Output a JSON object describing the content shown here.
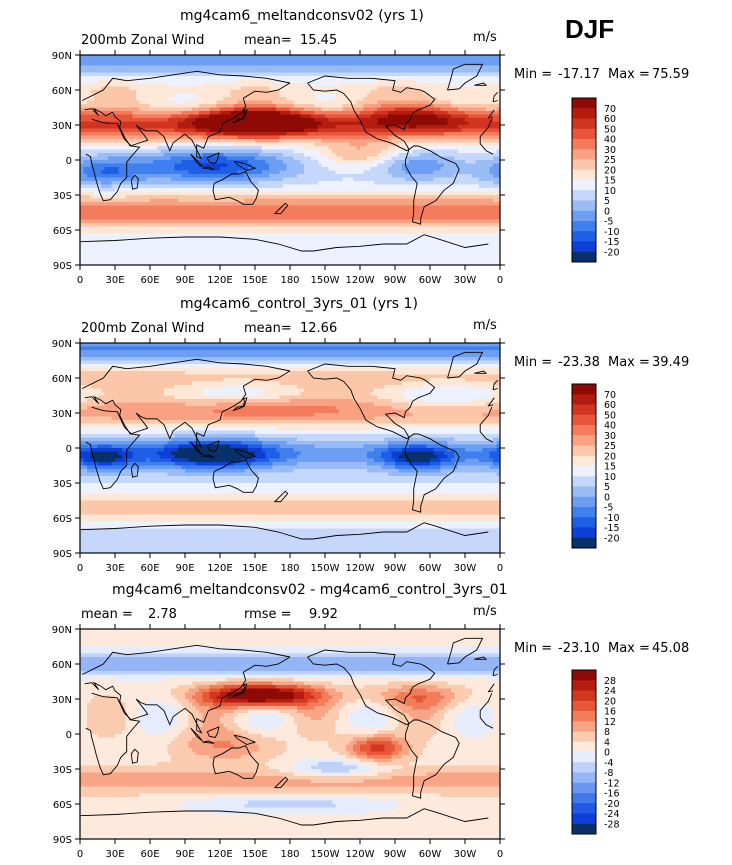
{
  "season": "DJF",
  "colors": {
    "frame": "#000000",
    "coast": "#000000",
    "mean_palette": [
      "#08306b",
      "#0d3fd6",
      "#1f5fe8",
      "#3f7fee",
      "#6c9ef3",
      "#99bbf6",
      "#c5d8fb",
      "#eef1ff",
      "#fde7d7",
      "#fcc6a8",
      "#f9a283",
      "#f47b5c",
      "#e9553a",
      "#d13520",
      "#b51c10",
      "#8e0a05"
    ],
    "diff_palette": [
      "#08306b",
      "#0d3fd6",
      "#2458e8",
      "#4377ee",
      "#6b97f2",
      "#94b5f6",
      "#bdd1fa",
      "#e4ecfe",
      "#fdeadc",
      "#fbcbb0",
      "#f7a584",
      "#f17e59",
      "#e75838",
      "#d3381f",
      "#b81b10",
      "#8e0a05"
    ]
  },
  "chart_data": [
    {
      "type": "heatmap",
      "title": "mg4cam6_meltandconsv02 (yrs 1)",
      "label_left": "200mb Zonal Wind",
      "stat1_label": "mean=",
      "stat1_value": "15.45",
      "stat2_label": "",
      "stat2_value": "",
      "units": "m/s",
      "min_label": "Min =",
      "min_value": "-17.17",
      "max_label": "Max =",
      "max_value": "75.59",
      "y_ticks": [
        "90N",
        "60N",
        "30N",
        "0",
        "30S",
        "60S",
        "90S"
      ],
      "x_ticks": [
        "0",
        "30E",
        "60E",
        "90E",
        "120E",
        "150E",
        "180",
        "150W",
        "120W",
        "90W",
        "60W",
        "30W",
        "0"
      ],
      "colorbar_labels": [
        "70",
        "60",
        "50",
        "40",
        "30",
        "25",
        "20",
        "15",
        "10",
        "5",
        "0",
        "-5",
        "-10",
        "-15",
        "-20"
      ],
      "field": "mean_200mb_zonal_wind_exp"
    },
    {
      "type": "heatmap",
      "title": "mg4cam6_control_3yrs_01 (yrs 1)",
      "label_left": "200mb Zonal Wind",
      "stat1_label": "mean=",
      "stat1_value": "12.66",
      "stat2_label": "",
      "stat2_value": "",
      "units": "m/s",
      "min_label": "Min =",
      "min_value": "-23.38",
      "max_label": "Max =",
      "max_value": "39.49",
      "y_ticks": [
        "90N",
        "60N",
        "30N",
        "0",
        "30S",
        "60S",
        "90S"
      ],
      "x_ticks": [
        "0",
        "30E",
        "60E",
        "90E",
        "120E",
        "150E",
        "180",
        "150W",
        "120W",
        "90W",
        "60W",
        "30W",
        "0"
      ],
      "colorbar_labels": [
        "70",
        "60",
        "50",
        "40",
        "30",
        "25",
        "20",
        "15",
        "10",
        "5",
        "0",
        "-5",
        "-10",
        "-15",
        "-20"
      ],
      "field": "mean_200mb_zonal_wind_ctrl"
    },
    {
      "type": "heatmap",
      "title": "mg4cam6_meltandconsv02 - mg4cam6_control_3yrs_01",
      "label_left": "",
      "stat1_label": "mean =",
      "stat1_value": "2.78",
      "stat2_label": "rmse =",
      "stat2_value": "9.92",
      "units": "m/s",
      "min_label": "Min =",
      "min_value": "-23.10",
      "max_label": "Max =",
      "max_value": "45.08",
      "y_ticks": [
        "90N",
        "60N",
        "30N",
        "0",
        "30S",
        "60S",
        "90S"
      ],
      "x_ticks": [
        "0",
        "30E",
        "60E",
        "90E",
        "120E",
        "150E",
        "180",
        "150W",
        "120W",
        "90W",
        "60W",
        "30W",
        "0"
      ],
      "colorbar_labels": [
        "28",
        "24",
        "20",
        "16",
        "12",
        "8",
        "4",
        "0",
        "-4",
        "-8",
        "-12",
        "-16",
        "-20",
        "-24",
        "-28"
      ],
      "field": "difference"
    }
  ]
}
